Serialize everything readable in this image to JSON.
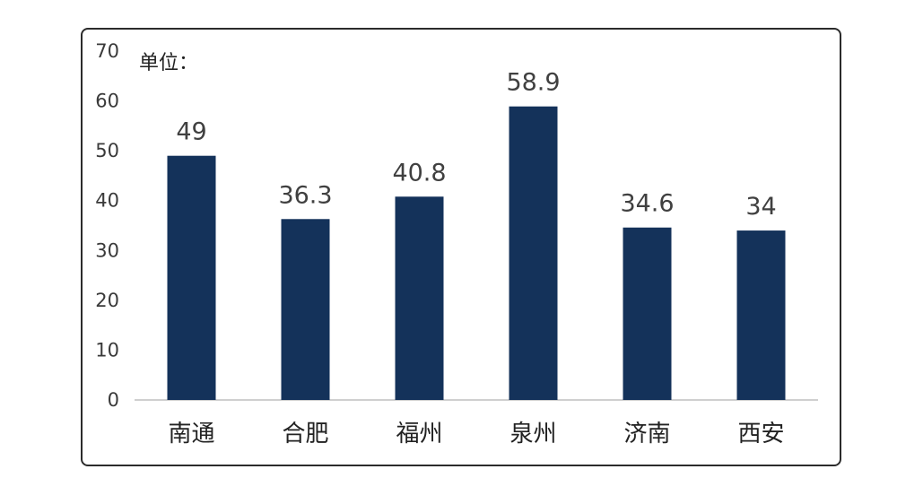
{
  "chart_data": {
    "type": "bar",
    "unit_label": "单位：",
    "categories": [
      "南通",
      "合肥",
      "福州",
      "泉州",
      "济南",
      "西安"
    ],
    "values": [
      49,
      36.3,
      40.8,
      58.9,
      34.6,
      34
    ],
    "data_labels": [
      "49",
      "36.3",
      "40.8",
      "58.9",
      "34.6",
      "34"
    ],
    "yticks": [
      0,
      10,
      20,
      30,
      40,
      50,
      60,
      70
    ],
    "ylim": [
      0,
      70
    ],
    "grid": false,
    "bar_color": "#14325a",
    "axis_color": "#bfbfbf"
  }
}
